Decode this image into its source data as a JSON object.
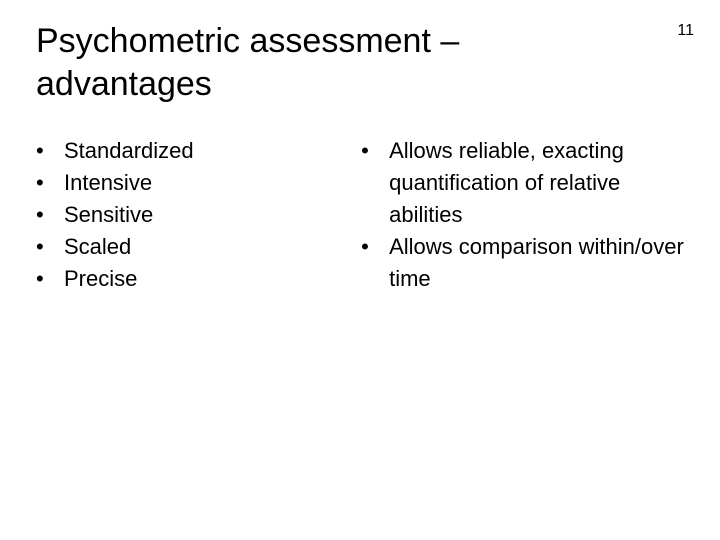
{
  "slide": {
    "number": "11",
    "title": "Psychometric assessment – advantages"
  },
  "left": {
    "items": [
      "Standardized",
      "Intensive",
      "Sensitive",
      "Scaled",
      "Precise"
    ]
  },
  "right": {
    "items": [
      "Allows reliable, exacting quantification of relative abilities",
      "Allows comparison within/over time"
    ]
  },
  "style": {
    "bullet_glyph": "•",
    "title_fontsize": 34,
    "body_fontsize": 22,
    "text_color": "#000000",
    "background_color": "#ffffff"
  }
}
